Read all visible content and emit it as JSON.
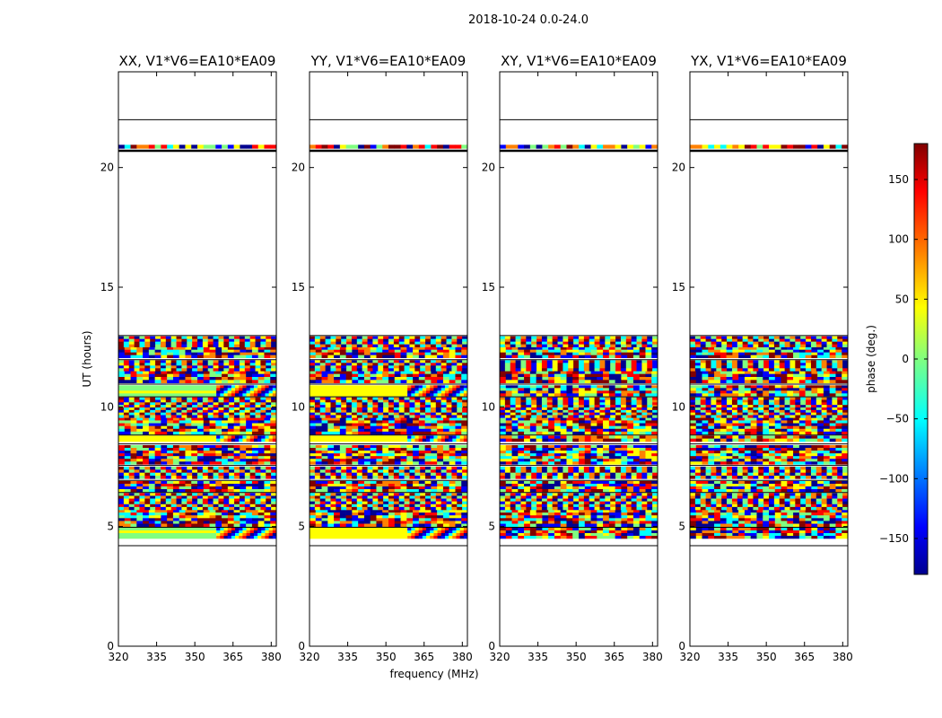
{
  "figure": {
    "suptitle": "2018-10-24 0.0-24.0"
  },
  "chart_data": {
    "type": "heatmap",
    "panels": [
      {
        "id": "xx",
        "title": "XX, V1*V6=EA10*EA09"
      },
      {
        "id": "yy",
        "title": "YY, V1*V6=EA10*EA09"
      },
      {
        "id": "xy",
        "title": "XY, V1*V6=EA10*EA09"
      },
      {
        "id": "yx",
        "title": "YX, V1*V6=EA10*EA09"
      }
    ],
    "xlabel": "frequency (MHz)",
    "ylabel": "UT (hours)",
    "xlim": [
      320,
      382
    ],
    "ylim": [
      0,
      24
    ],
    "xticks": [
      320,
      335,
      350,
      365,
      380
    ],
    "yticks": [
      0,
      5,
      10,
      15,
      20
    ],
    "data_extent_hours": [
      4.2,
      20.9
    ],
    "colorbar": {
      "label": "phase (deg.)",
      "colormap": "jet",
      "range": [
        -180,
        180
      ],
      "ticks": [
        150,
        100,
        50,
        0,
        -50,
        -100,
        -150
      ],
      "tick_labels": [
        "150",
        "100",
        "50",
        "0",
        "−50",
        "−100",
        "−150"
      ]
    }
  },
  "colors": {
    "jet": [
      "#00008f",
      "#0000ff",
      "#00ffff",
      "#80ff80",
      "#ffff00",
      "#ff8000",
      "#ff0000",
      "#800000"
    ],
    "axis": "#000000"
  }
}
